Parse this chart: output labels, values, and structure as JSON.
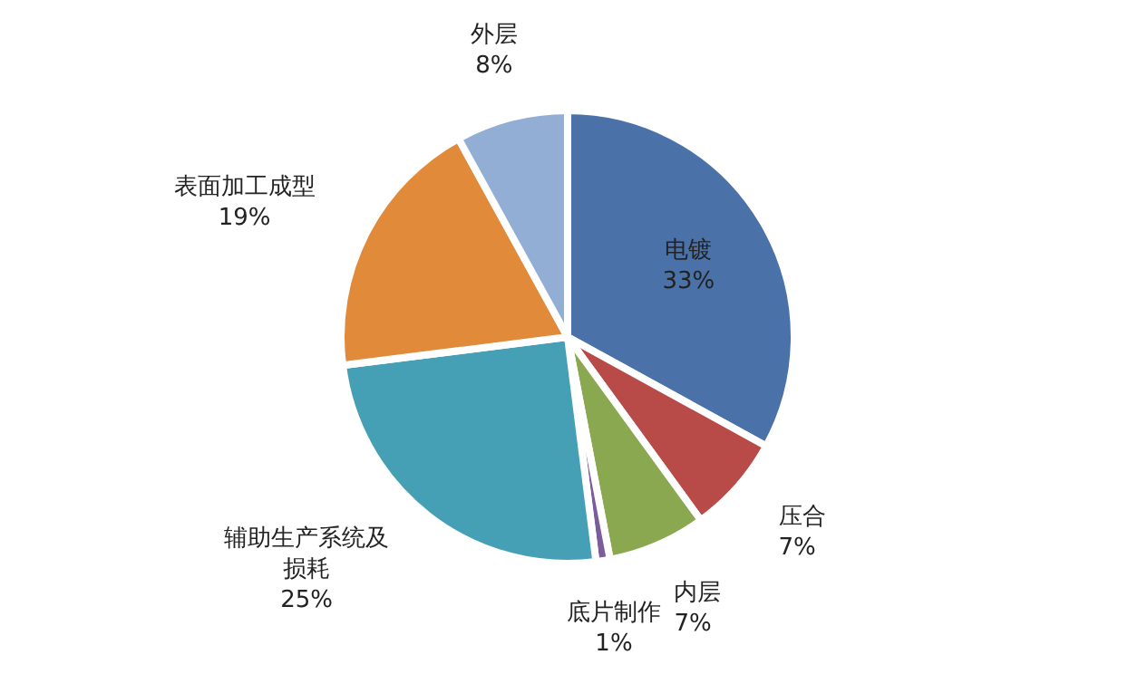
{
  "chart_data": {
    "type": "pie",
    "legend": false,
    "categories": [
      "电镀",
      "压合",
      "内层",
      "底片制作",
      "辅助生产系统及损耗",
      "表面加工成型",
      "外层"
    ],
    "values": [
      33,
      7,
      7,
      1,
      25,
      19,
      8
    ],
    "value_labels": [
      "33%",
      "7%",
      "7%",
      "1%",
      "25%",
      "19%",
      "8%"
    ],
    "colors": [
      "#4a72a8",
      "#b84a47",
      "#8aa84f",
      "#7a5d9a",
      "#45a0b5",
      "#e08a3a",
      "#93aed4"
    ]
  }
}
